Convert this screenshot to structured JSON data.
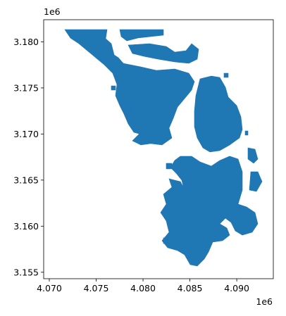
{
  "chart_data": {
    "type": "map",
    "fill_color": "#1f77b4",
    "xlim": [
      4069400,
      4093900
    ],
    "ylim": [
      3154300,
      3182400
    ],
    "x_offset_label": "1e6",
    "y_offset_label": "1e6",
    "x_ticks": [
      {
        "value": 4070000,
        "label": "4.070"
      },
      {
        "value": 4075000,
        "label": "4.075"
      },
      {
        "value": 4080000,
        "label": "4.080"
      },
      {
        "value": 4085000,
        "label": "4.085"
      },
      {
        "value": 4090000,
        "label": "4.090"
      }
    ],
    "y_ticks": [
      {
        "value": 3155000,
        "label": "3.155"
      },
      {
        "value": 3160000,
        "label": "3.160"
      },
      {
        "value": 3165000,
        "label": "3.165"
      },
      {
        "value": 3170000,
        "label": "3.170"
      },
      {
        "value": 3175000,
        "label": "3.175"
      },
      {
        "value": 3180000,
        "label": "3.180"
      }
    ],
    "grid": false
  }
}
